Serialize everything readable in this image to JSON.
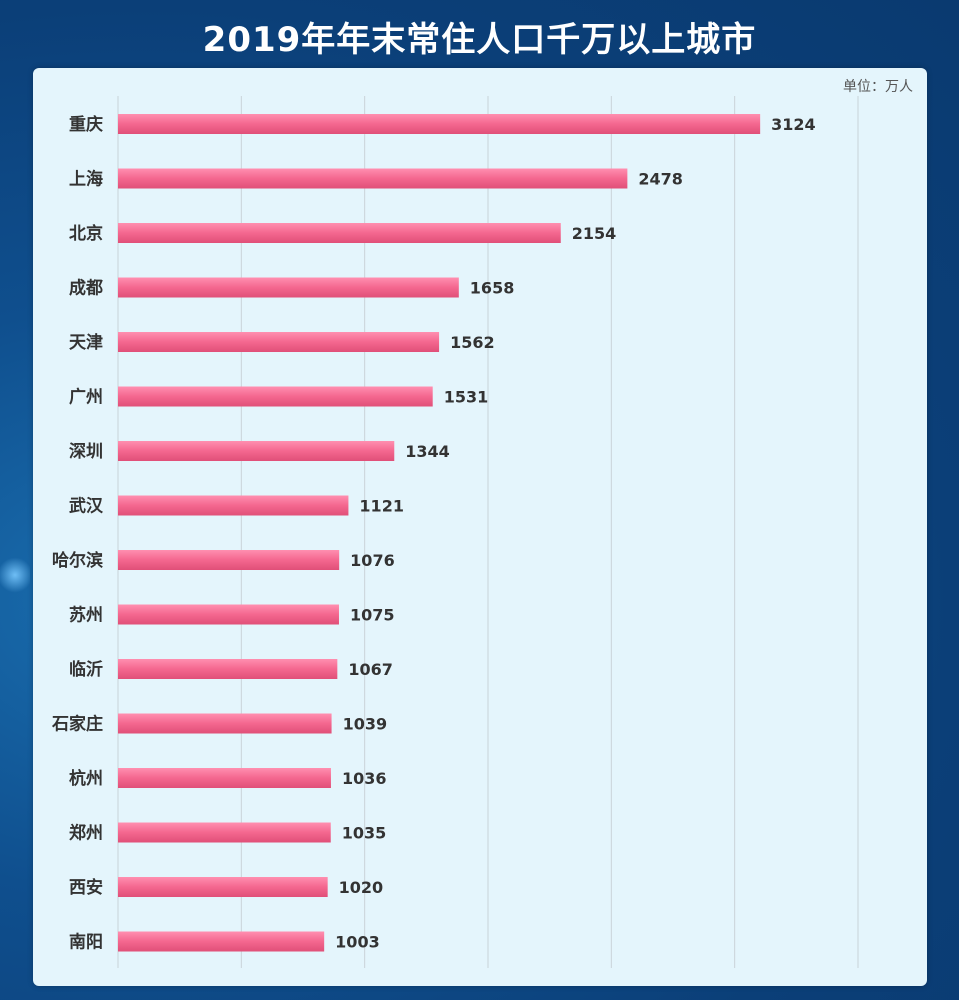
{
  "chart_data": {
    "type": "bar",
    "orientation": "horizontal",
    "title": "2019年年末常住人口千万以上城市",
    "unit_label": "单位：万人",
    "categories": [
      "重庆",
      "上海",
      "北京",
      "成都",
      "天津",
      "广州",
      "深圳",
      "武汉",
      "哈尔滨",
      "苏州",
      "临沂",
      "石家庄",
      "杭州",
      "郑州",
      "西安",
      "南阳"
    ],
    "values": [
      3124,
      2478,
      2154,
      1658,
      1562,
      1531,
      1344,
      1121,
      1076,
      1075,
      1067,
      1039,
      1036,
      1035,
      1020,
      1003
    ],
    "xlim": [
      0,
      3600
    ],
    "grid": true,
    "bar_color": "#f4678f"
  }
}
